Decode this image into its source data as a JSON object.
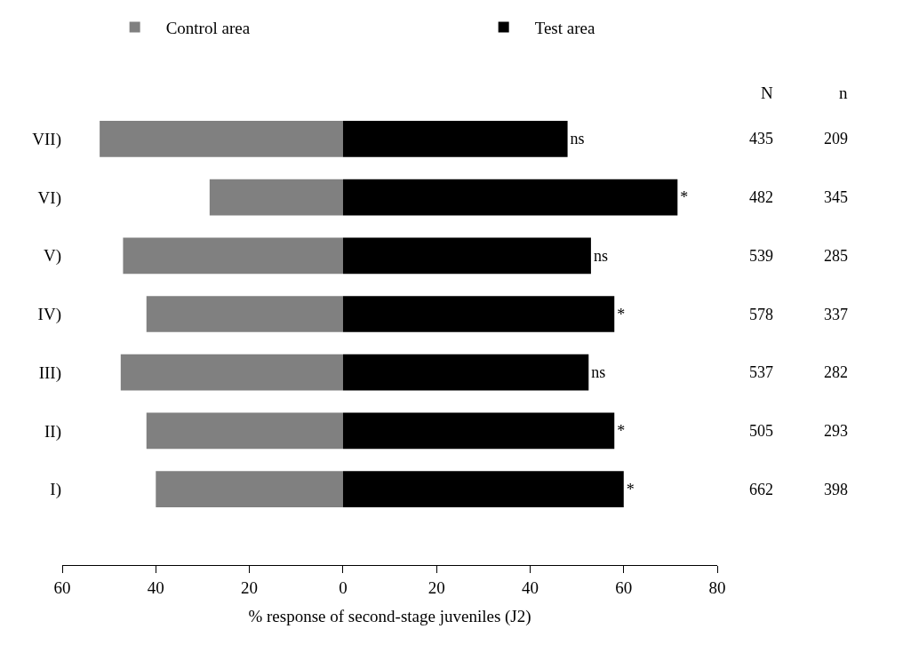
{
  "chart_data": {
    "type": "bar",
    "orientation": "horizontal",
    "stacked": true,
    "xlabel": "% response of second-stage juveniles (J2)",
    "categories": [
      "VII)",
      "VI)",
      "V)",
      "IV)",
      "III)",
      "II)",
      "I)"
    ],
    "series": [
      {
        "name": "Control area",
        "color": "#808080",
        "values": [
          -52,
          -28.5,
          -47,
          -42,
          -47.5,
          -42,
          -40
        ]
      },
      {
        "name": "Test area",
        "color": "#000000",
        "values": [
          48,
          71.5,
          53,
          58,
          52.5,
          58,
          60
        ],
        "value_labels": [
          "ns",
          "*",
          "ns",
          "*",
          "ns",
          "*",
          "*"
        ]
      }
    ],
    "xlim": [
      -60,
      80
    ],
    "xticks": [
      {
        "value": -60,
        "label": "60"
      },
      {
        "value": -40,
        "label": "40"
      },
      {
        "value": -20,
        "label": "20"
      },
      0,
      20,
      40,
      60,
      80
    ],
    "legend": "top",
    "annotations": [
      "N",
      "n",
      "435",
      "209",
      "482",
      "345",
      "539",
      "285",
      "578",
      "337",
      "537",
      "282",
      "505",
      "293",
      "662",
      "398"
    ]
  }
}
